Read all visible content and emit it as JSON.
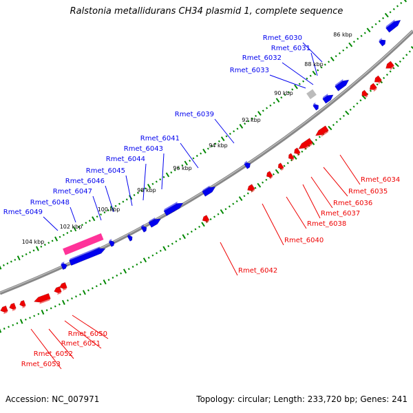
{
  "title": "Ralstonia metallidurans CH34 plasmid 1, complete sequence",
  "footer": {
    "accession": "Accession: NC_007971",
    "summary": "Topology: circular; Length: 233,720 bp; Genes: 241"
  },
  "colors": {
    "forward": "#0000ee",
    "reverse": "#ee0000",
    "highlight": "#ff3399",
    "unknown": "#bbbbbb",
    "backbone": "#888888",
    "tick": "#008800"
  },
  "kbp_ticks": [
    "86 kbp",
    "88 kbp",
    "90 kbp",
    "92 kbp",
    "94 kbp",
    "96 kbp",
    "98 kbp",
    "100 kbp",
    "102 kbp",
    "104 kbp"
  ],
  "forward_genes": [
    "Rmet_6030",
    "Rmet_6031",
    "Rmet_6032",
    "Rmet_6033",
    "Rmet_6039",
    "Rmet_6041",
    "Rmet_6043",
    "Rmet_6044",
    "Rmet_6045",
    "Rmet_6046",
    "Rmet_6047",
    "Rmet_6048",
    "Rmet_6049"
  ],
  "reverse_genes": [
    "Rmet_6034",
    "Rmet_6035",
    "Rmet_6036",
    "Rmet_6037",
    "Rmet_6038",
    "Rmet_6040",
    "Rmet_6042",
    "Rmet_6050",
    "Rmet_6051",
    "Rmet_6052",
    "Rmet_6053"
  ]
}
